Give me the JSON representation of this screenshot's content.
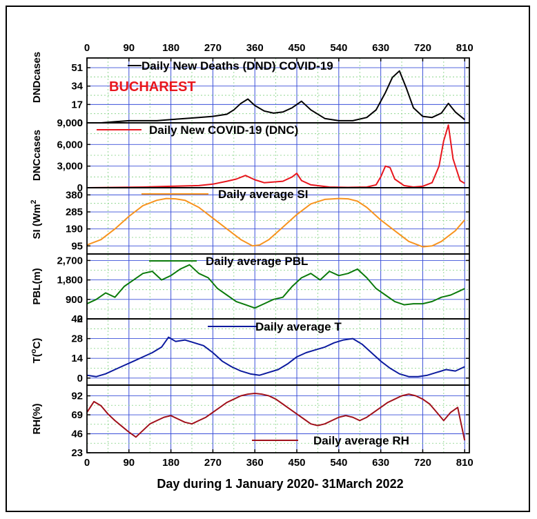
{
  "chart_data": {
    "type": "line",
    "xlabel": "Day during 1 January 2020- 31March 2022",
    "x_ticks": [
      0,
      90,
      180,
      270,
      360,
      450,
      540,
      630,
      720,
      810
    ],
    "xlim": [
      0,
      820
    ],
    "annotation": {
      "text": "BUCHAREST",
      "color": "#e8161d"
    },
    "panels": [
      {
        "id": "dnd",
        "ylabel": "DNDcases",
        "ylim": [
          0,
          60
        ],
        "yticks": [
          "0",
          "17",
          "34",
          "51"
        ],
        "ytick_values": [
          0,
          17,
          34,
          51
        ],
        "series": [
          {
            "name": "Daily New Deaths (DND) COVID-19",
            "color": "#000000",
            "x": [
              0,
              30,
              60,
              90,
              120,
              150,
              180,
              210,
              240,
              270,
              300,
              315,
              330,
              345,
              360,
              380,
              400,
              420,
              440,
              460,
              480,
              510,
              540,
              570,
              600,
              620,
              640,
              655,
              670,
              685,
              700,
              720,
              740,
              760,
              775,
              790,
              810
            ],
            "y": [
              0,
              0,
              1,
              2,
              2,
              2,
              3,
              4,
              5,
              6,
              8,
              12,
              18,
              22,
              16,
              11,
              9,
              10,
              14,
              20,
              12,
              4,
              2,
              2,
              5,
              12,
              28,
              42,
              48,
              32,
              14,
              6,
              5,
              9,
              18,
              10,
              3
            ]
          }
        ]
      },
      {
        "id": "dnc",
        "ylabel": "DNCcases",
        "ylim": [
          0,
          9000
        ],
        "yticks": [
          "0",
          "3,000",
          "6,000",
          "9,000"
        ],
        "ytick_values": [
          0,
          3000,
          6000,
          9000
        ],
        "series": [
          {
            "name": "Daily New COVID-19 (DNC)",
            "color": "#e8161d",
            "x": [
              0,
              60,
              120,
              180,
              240,
              270,
              300,
              320,
              340,
              360,
              380,
              420,
              440,
              450,
              460,
              480,
              520,
              560,
              600,
              620,
              630,
              640,
              650,
              660,
              680,
              700,
              720,
              740,
              755,
              765,
              775,
              785,
              800,
              810
            ],
            "y": [
              0,
              50,
              100,
              200,
              300,
              500,
              900,
              1200,
              1700,
              1100,
              700,
              900,
              1500,
              2000,
              1000,
              400,
              100,
              50,
              100,
              400,
              1500,
              3000,
              2800,
              1200,
              300,
              100,
              200,
              700,
              3000,
              6500,
              8700,
              4000,
              1000,
              600
            ]
          }
        ]
      },
      {
        "id": "si",
        "ylabel": "SI (Wm",
        "ylabel_sup": "2",
        "ylim": [
          50,
          420
        ],
        "yticks": [
          "95",
          "190",
          "285",
          "380"
        ],
        "ytick_values": [
          95,
          190,
          285,
          380
        ],
        "series": [
          {
            "name": "Daily average SI",
            "color": "#f7931e",
            "x": [
              0,
              30,
              60,
              90,
              120,
              150,
              170,
              190,
              210,
              240,
              270,
              300,
              330,
              355,
              370,
              390,
              420,
              450,
              480,
              510,
              540,
              560,
              580,
              600,
              630,
              660,
              690,
              720,
              740,
              760,
              790,
              810
            ],
            "y": [
              100,
              130,
              190,
              260,
              320,
              350,
              360,
              358,
              350,
              310,
              250,
              190,
              130,
              95,
              100,
              130,
              200,
              270,
              330,
              355,
              360,
              358,
              345,
              310,
              240,
              180,
              120,
              90,
              95,
              120,
              180,
              240
            ]
          }
        ]
      },
      {
        "id": "pbl",
        "ylabel": "PBL(m)",
        "ylim": [
          0,
          3000
        ],
        "yticks": [
          "0",
          "900",
          "1,800",
          "2,700"
        ],
        "ytick_values": [
          0,
          900,
          1800,
          2700
        ],
        "series": [
          {
            "name": "Daily average PBL",
            "color": "#0a7a0a",
            "x": [
              0,
              20,
              40,
              60,
              80,
              100,
              120,
              140,
              160,
              180,
              200,
              220,
              240,
              260,
              280,
              300,
              320,
              340,
              360,
              380,
              400,
              420,
              440,
              460,
              480,
              500,
              520,
              540,
              560,
              580,
              600,
              620,
              640,
              660,
              680,
              700,
              720,
              740,
              760,
              780,
              800,
              810
            ],
            "y": [
              700,
              900,
              1200,
              1000,
              1500,
              1800,
              2100,
              2200,
              1800,
              2000,
              2300,
              2500,
              2100,
              1900,
              1400,
              1100,
              800,
              650,
              500,
              700,
              900,
              1000,
              1500,
              1900,
              2100,
              1800,
              2200,
              2000,
              2100,
              2300,
              1900,
              1400,
              1100,
              800,
              650,
              700,
              700,
              800,
              1000,
              1100,
              1300,
              1400
            ]
          }
        ]
      },
      {
        "id": "t",
        "ylabel": "T(",
        "ylabel_sup": "o",
        "ylabel_end": "C)",
        "ylim": [
          -5,
          42
        ],
        "yticks": [
          "0",
          "14",
          "28",
          "42"
        ],
        "ytick_values": [
          0,
          14,
          28,
          42
        ],
        "series": [
          {
            "name": "Daily average  T",
            "color": "#0b1a9e",
            "x": [
              0,
              20,
              40,
              60,
              80,
              100,
              120,
              140,
              160,
              175,
              190,
              210,
              230,
              250,
              270,
              290,
              310,
              330,
              350,
              370,
              390,
              410,
              430,
              450,
              470,
              490,
              510,
              530,
              550,
              570,
              590,
              610,
              630,
              650,
              670,
              690,
              710,
              730,
              750,
              770,
              790,
              810
            ],
            "y": [
              2,
              1,
              3,
              6,
              9,
              12,
              15,
              18,
              22,
              29,
              26,
              27,
              25,
              23,
              18,
              12,
              8,
              5,
              3,
              2,
              4,
              6,
              10,
              15,
              18,
              20,
              22,
              25,
              27,
              28,
              24,
              18,
              12,
              7,
              3,
              1,
              1,
              2,
              4,
              6,
              5,
              8
            ]
          }
        ]
      },
      {
        "id": "rh",
        "ylabel": "RH(%)",
        "ylim": [
          23,
          105
        ],
        "yticks": [
          "23",
          "46",
          "69",
          "92"
        ],
        "ytick_values": [
          23,
          46,
          69,
          92
        ],
        "series": [
          {
            "name": "Daily average RH",
            "color": "#a0101a",
            "x": [
              0,
              15,
              30,
              45,
              60,
              75,
              90,
              105,
              120,
              135,
              150,
              165,
              180,
              195,
              210,
              225,
              240,
              255,
              270,
              285,
              300,
              315,
              330,
              345,
              360,
              375,
              390,
              405,
              420,
              435,
              450,
              465,
              480,
              495,
              510,
              525,
              540,
              555,
              570,
              585,
              600,
              615,
              630,
              645,
              660,
              675,
              690,
              705,
              720,
              735,
              750,
              765,
              780,
              795,
              810
            ],
            "y": [
              72,
              85,
              80,
              70,
              62,
              55,
              48,
              42,
              50,
              58,
              62,
              66,
              68,
              64,
              60,
              58,
              62,
              66,
              72,
              78,
              84,
              88,
              92,
              94,
              95,
              94,
              92,
              88,
              82,
              76,
              70,
              64,
              58,
              56,
              58,
              62,
              66,
              68,
              66,
              62,
              66,
              72,
              78,
              84,
              88,
              92,
              94,
              92,
              88,
              82,
              72,
              62,
              72,
              78,
              38
            ]
          }
        ]
      }
    ]
  }
}
